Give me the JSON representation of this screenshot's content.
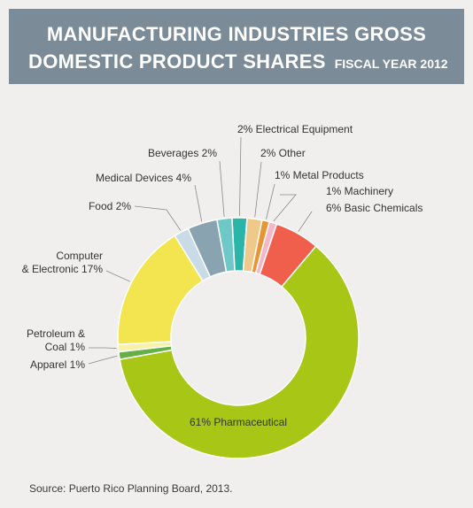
{
  "title": {
    "line1": "MANUFACTURING INDUSTRIES GROSS",
    "line2": "DOMESTIC PRODUCT SHARES",
    "subtitle": "FISCAL YEAR 2012"
  },
  "source": "Source: Puerto Rico Planning Board, 2013.",
  "chart_data": {
    "type": "pie",
    "donut": true,
    "title": "MANUFACTURING INDUSTRIES GROSS DOMESTIC PRODUCT SHARES",
    "subtitle": "FISCAL YEAR 2012",
    "legend": "none",
    "slices": [
      {
        "name": "Electrical Equipment",
        "value": 2,
        "label": "2% Electrical Equipment",
        "color": "#2bb5a8"
      },
      {
        "name": "Other",
        "value": 2,
        "label": "2% Other",
        "color": "#efc98a"
      },
      {
        "name": "Metal Products",
        "value": 1,
        "label": "1% Metal Products",
        "color": "#e89535"
      },
      {
        "name": "Machinery",
        "value": 1,
        "label": "1% Machinery",
        "color": "#f2b7c9"
      },
      {
        "name": "Basic Chemicals",
        "value": 6,
        "label": "6% Basic Chemicals",
        "color": "#ef5f4c"
      },
      {
        "name": "Pharmaceutical",
        "value": 61,
        "label": "61% Pharmaceutical",
        "color": "#a7c616"
      },
      {
        "name": "Apparel",
        "value": 1,
        "label": "Apparel 1%",
        "color": "#63b046"
      },
      {
        "name": "Petroleum & Coal",
        "value": 1,
        "label": "Petroleum & Coal 1%",
        "color": "#f8f1a8"
      },
      {
        "name": "Computer & Electronic",
        "value": 17,
        "label": "Computer & Electronic 17%",
        "color": "#f3e550"
      },
      {
        "name": "Food",
        "value": 2,
        "label": "Food 2%",
        "color": "#c8dbe7"
      },
      {
        "name": "Medical Devices",
        "value": 4,
        "label": "Medical Devices 4%",
        "color": "#8aa3b0"
      },
      {
        "name": "Beverages",
        "value": 2,
        "label": "Beverages 2%",
        "color": "#6fc8c8"
      }
    ]
  }
}
